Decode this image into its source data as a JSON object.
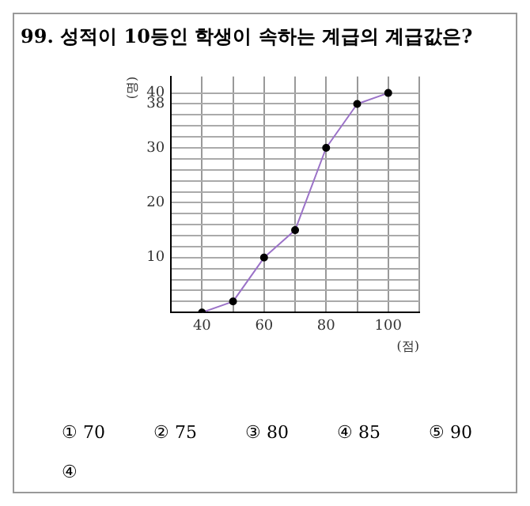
{
  "chart_data": {
    "type": "line",
    "title": "99. 성적이 10등인 학생이 속하는 계급의 계급값은?",
    "xlabel": "(점)",
    "ylabel": "(명)",
    "x": [
      40,
      50,
      60,
      70,
      80,
      90,
      100
    ],
    "series": [
      {
        "color": "#9b72c8",
        "values": [
          0,
          2,
          10,
          15,
          30,
          38,
          40
        ]
      }
    ],
    "xlim": [
      30,
      110
    ],
    "xticks": [
      40,
      {
        "value": 50,
        "label": null
      },
      60,
      {
        "value": 70,
        "label": null
      },
      80,
      {
        "value": 90,
        "label": null
      },
      100,
      {
        "value": 110,
        "label": null
      }
    ],
    "ylim": [
      0,
      43
    ],
    "yticks": [
      {
        "value": 2,
        "label": null
      },
      {
        "value": 4,
        "label": null
      },
      {
        "value": 6,
        "label": null
      },
      {
        "value": 8,
        "label": null
      },
      10,
      {
        "value": 12,
        "label": null
      },
      {
        "value": 14,
        "label": null
      },
      {
        "value": 16,
        "label": null
      },
      {
        "value": 18,
        "label": null
      },
      20,
      {
        "value": 22,
        "label": null
      },
      {
        "value": 24,
        "label": null
      },
      {
        "value": 26,
        "label": null
      },
      {
        "value": 28,
        "label": null
      },
      30,
      {
        "value": 32,
        "label": null
      },
      {
        "value": 34,
        "label": null
      },
      {
        "value": 36,
        "label": null
      },
      38,
      40
    ],
    "grid": true,
    "marker": "circle",
    "line_style": "solid",
    "legend": false,
    "annotations": [
      "① 70",
      "② 75",
      "③ 80",
      "④ 85",
      "⑤ 90",
      "④"
    ]
  }
}
